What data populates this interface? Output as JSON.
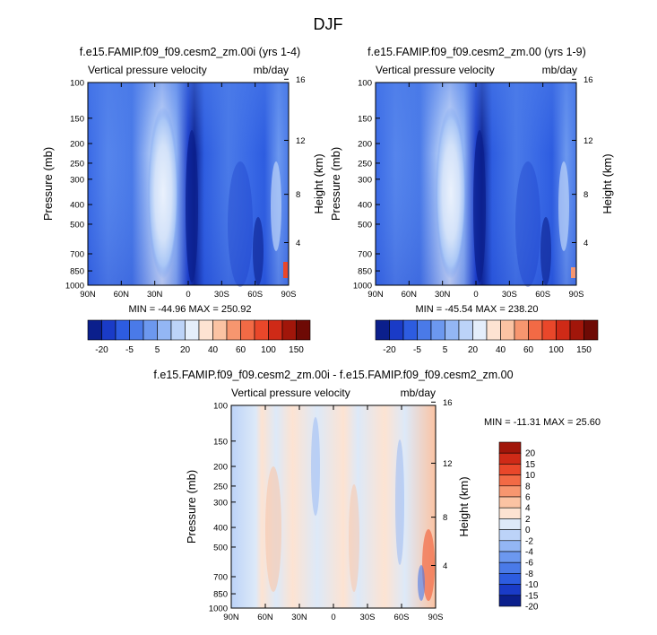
{
  "page_title": "DJF",
  "colors": {
    "palette_main": [
      "#0b1f8c",
      "#1a3bc7",
      "#2d5ce0",
      "#4a7ae8",
      "#6c98ef",
      "#93b6f4",
      "#bcd3f8",
      "#e4eefb",
      "#fde3d2",
      "#fbc3a3",
      "#f7966f",
      "#f26a45",
      "#e9472a",
      "#cf2a17",
      "#a1160a",
      "#6e0a05"
    ],
    "palette_diff": [
      "#0b1f8c",
      "#1a3bc7",
      "#2d5ce0",
      "#4a7ae8",
      "#6c98ef",
      "#93b6f4",
      "#bcd3f8",
      "#dde9f8",
      "#fde3d2",
      "#fbc3a3",
      "#f7966f",
      "#f26a45",
      "#e9472a",
      "#cf2a17",
      "#a1160a"
    ]
  },
  "chart_data": [
    {
      "id": "panel1",
      "type": "heatmap",
      "title": "f.e15.FAMIP.f09_f09.cesm2_zm.00i (yrs 1-4)",
      "subtitle_left": "Vertical pressure velocity",
      "subtitle_right": "mb/day",
      "ylabel": "Pressure (mb)",
      "ylabel_right": "Height (km)",
      "x_ticks": [
        "90N",
        "60N",
        "30N",
        "0",
        "30S",
        "60S",
        "90S"
      ],
      "y_ticks": [
        "100",
        "150",
        "200",
        "250",
        "300",
        "400",
        "500",
        "700",
        "850",
        "1000"
      ],
      "height_ticks": [
        "16",
        "12",
        "8",
        "4"
      ],
      "ylim": [
        1000,
        100
      ],
      "stats": "MIN = -44.96  MAX = 250.92",
      "min": -44.96,
      "max": 250.92,
      "colorbar_labels": [
        "-20",
        "-5",
        "5",
        "20",
        "40",
        "60",
        "100",
        "150"
      ]
    },
    {
      "id": "panel2",
      "type": "heatmap",
      "title": "f.e15.FAMIP.f09_f09.cesm2_zm.00 (yrs 1-9)",
      "subtitle_left": "Vertical pressure velocity",
      "subtitle_right": "mb/day",
      "ylabel": "Pressure (mb)",
      "ylabel_right": "Height (km)",
      "x_ticks": [
        "90N",
        "60N",
        "30N",
        "0",
        "30S",
        "60S",
        "90S"
      ],
      "y_ticks": [
        "100",
        "150",
        "200",
        "250",
        "300",
        "400",
        "500",
        "700",
        "850",
        "1000"
      ],
      "height_ticks": [
        "16",
        "12",
        "8",
        "4"
      ],
      "ylim": [
        1000,
        100
      ],
      "stats": "MIN = -45.54  MAX = 238.20",
      "min": -45.54,
      "max": 238.2,
      "colorbar_labels": [
        "-20",
        "-5",
        "5",
        "20",
        "40",
        "60",
        "100",
        "150"
      ]
    },
    {
      "id": "panel3",
      "type": "heatmap",
      "title": "f.e15.FAMIP.f09_f09.cesm2_zm.00i - f.e15.FAMIP.f09_f09.cesm2_zm.00",
      "subtitle_left": "Vertical pressure velocity",
      "subtitle_right": "mb/day",
      "ylabel": "Pressure (mb)",
      "ylabel_right": "Height (km)",
      "x_ticks": [
        "90N",
        "60N",
        "30N",
        "0",
        "30S",
        "60S",
        "90S"
      ],
      "y_ticks": [
        "100",
        "150",
        "200",
        "250",
        "300",
        "400",
        "500",
        "700",
        "850",
        "1000"
      ],
      "height_ticks": [
        "16",
        "12",
        "8",
        "4"
      ],
      "ylim": [
        1000,
        100
      ],
      "stats": "MIN = -11.31  MAX = 25.60",
      "min": -11.31,
      "max": 25.6,
      "colorbar_labels": [
        "20",
        "15",
        "10",
        "8",
        "6",
        "4",
        "2",
        "0",
        "-2",
        "-4",
        "-6",
        "-8",
        "-10",
        "-15",
        "-20"
      ]
    }
  ]
}
